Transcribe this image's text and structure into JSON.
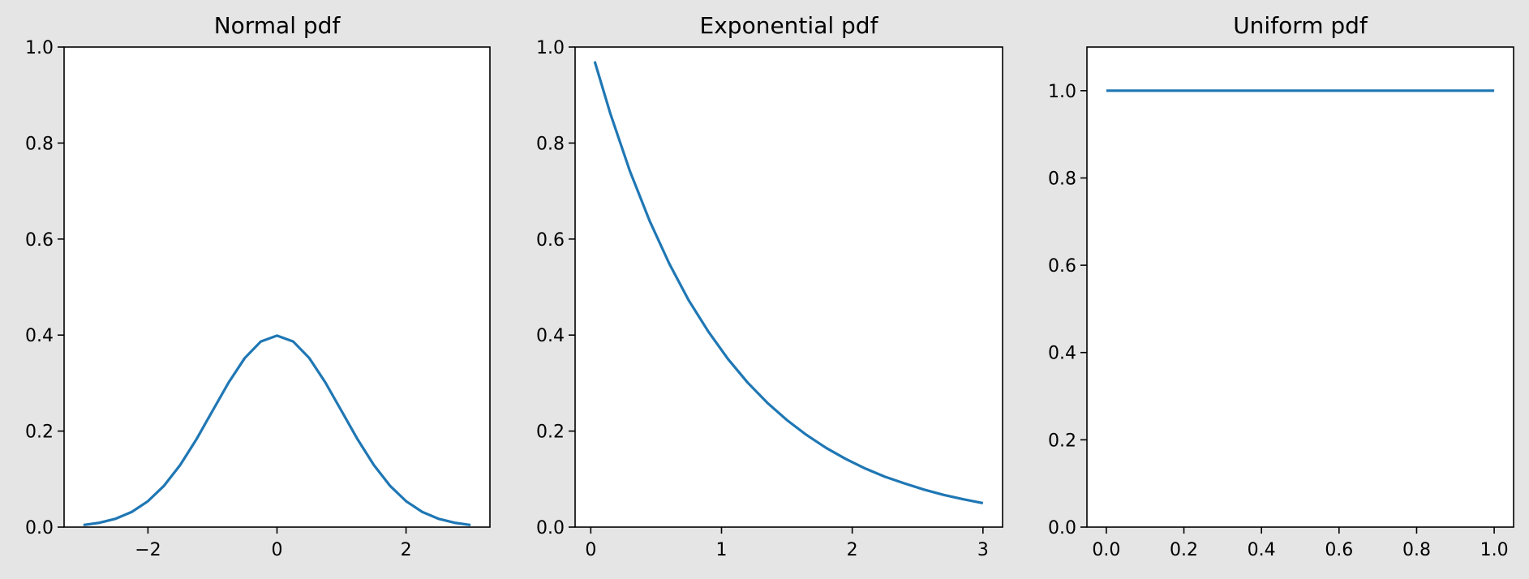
{
  "figure": {
    "background": "#e5e5e5",
    "line_color": "#1f77b4"
  },
  "chart_data": [
    {
      "type": "line",
      "title": "Normal pdf",
      "xlabel": "",
      "ylabel": "",
      "xlim": [
        -3.3,
        3.3
      ],
      "ylim": [
        0,
        1.0
      ],
      "xticks": [
        -2,
        0,
        2
      ],
      "xtick_labels": [
        "−2",
        "0",
        "2"
      ],
      "yticks": [
        0.0,
        0.2,
        0.4,
        0.6,
        0.8,
        1.0
      ],
      "ytick_labels": [
        "0.0",
        "0.2",
        "0.4",
        "0.6",
        "0.8",
        "1.0"
      ],
      "grid": false,
      "series": [
        {
          "x": [
            -3.0,
            -2.75,
            -2.5,
            -2.25,
            -2.0,
            -1.75,
            -1.5,
            -1.25,
            -1.0,
            -0.75,
            -0.5,
            -0.25,
            0.0,
            0.25,
            0.5,
            0.75,
            1.0,
            1.25,
            1.5,
            1.75,
            2.0,
            2.25,
            2.5,
            2.75,
            3.0
          ],
          "y": [
            0.0044,
            0.0091,
            0.0175,
            0.0317,
            0.054,
            0.0863,
            0.1295,
            0.1826,
            0.242,
            0.3011,
            0.3521,
            0.3867,
            0.3989,
            0.3867,
            0.3521,
            0.3011,
            0.242,
            0.1826,
            0.1295,
            0.0863,
            0.054,
            0.0317,
            0.0175,
            0.0091,
            0.0044
          ]
        }
      ]
    },
    {
      "type": "line",
      "title": "Exponential pdf",
      "xlabel": "",
      "ylabel": "",
      "xlim": [
        -0.12,
        3.15
      ],
      "ylim": [
        0,
        1.0
      ],
      "xticks": [
        0,
        1,
        2,
        3
      ],
      "xtick_labels": [
        "0",
        "1",
        "2",
        "3"
      ],
      "yticks": [
        0.0,
        0.2,
        0.4,
        0.6,
        0.8,
        1.0
      ],
      "ytick_labels": [
        "0.0",
        "0.2",
        "0.4",
        "0.6",
        "0.8",
        "1.0"
      ],
      "grid": false,
      "series": [
        {
          "x": [
            0.03,
            0.15,
            0.3,
            0.45,
            0.6,
            0.75,
            0.9,
            1.05,
            1.2,
            1.35,
            1.5,
            1.65,
            1.8,
            1.95,
            2.1,
            2.25,
            2.4,
            2.55,
            2.7,
            2.85,
            3.0
          ],
          "y": [
            0.97,
            0.861,
            0.741,
            0.638,
            0.549,
            0.472,
            0.407,
            0.35,
            0.301,
            0.259,
            0.223,
            0.192,
            0.165,
            0.142,
            0.122,
            0.105,
            0.091,
            0.078,
            0.067,
            0.058,
            0.05
          ]
        }
      ]
    },
    {
      "type": "line",
      "title": "Uniform pdf",
      "xlabel": "",
      "ylabel": "",
      "xlim": [
        -0.05,
        1.05
      ],
      "ylim": [
        0,
        1.1
      ],
      "xticks": [
        0.0,
        0.2,
        0.4,
        0.6,
        0.8,
        1.0
      ],
      "xtick_labels": [
        "0.0",
        "0.2",
        "0.4",
        "0.6",
        "0.8",
        "1.0"
      ],
      "yticks": [
        0.0,
        0.2,
        0.4,
        0.6,
        0.8,
        1.0
      ],
      "ytick_labels": [
        "0.0",
        "0.2",
        "0.4",
        "0.6",
        "0.8",
        "1.0"
      ],
      "grid": false,
      "series": [
        {
          "x": [
            0.0,
            1.0
          ],
          "y": [
            1.0,
            1.0
          ]
        }
      ]
    }
  ]
}
